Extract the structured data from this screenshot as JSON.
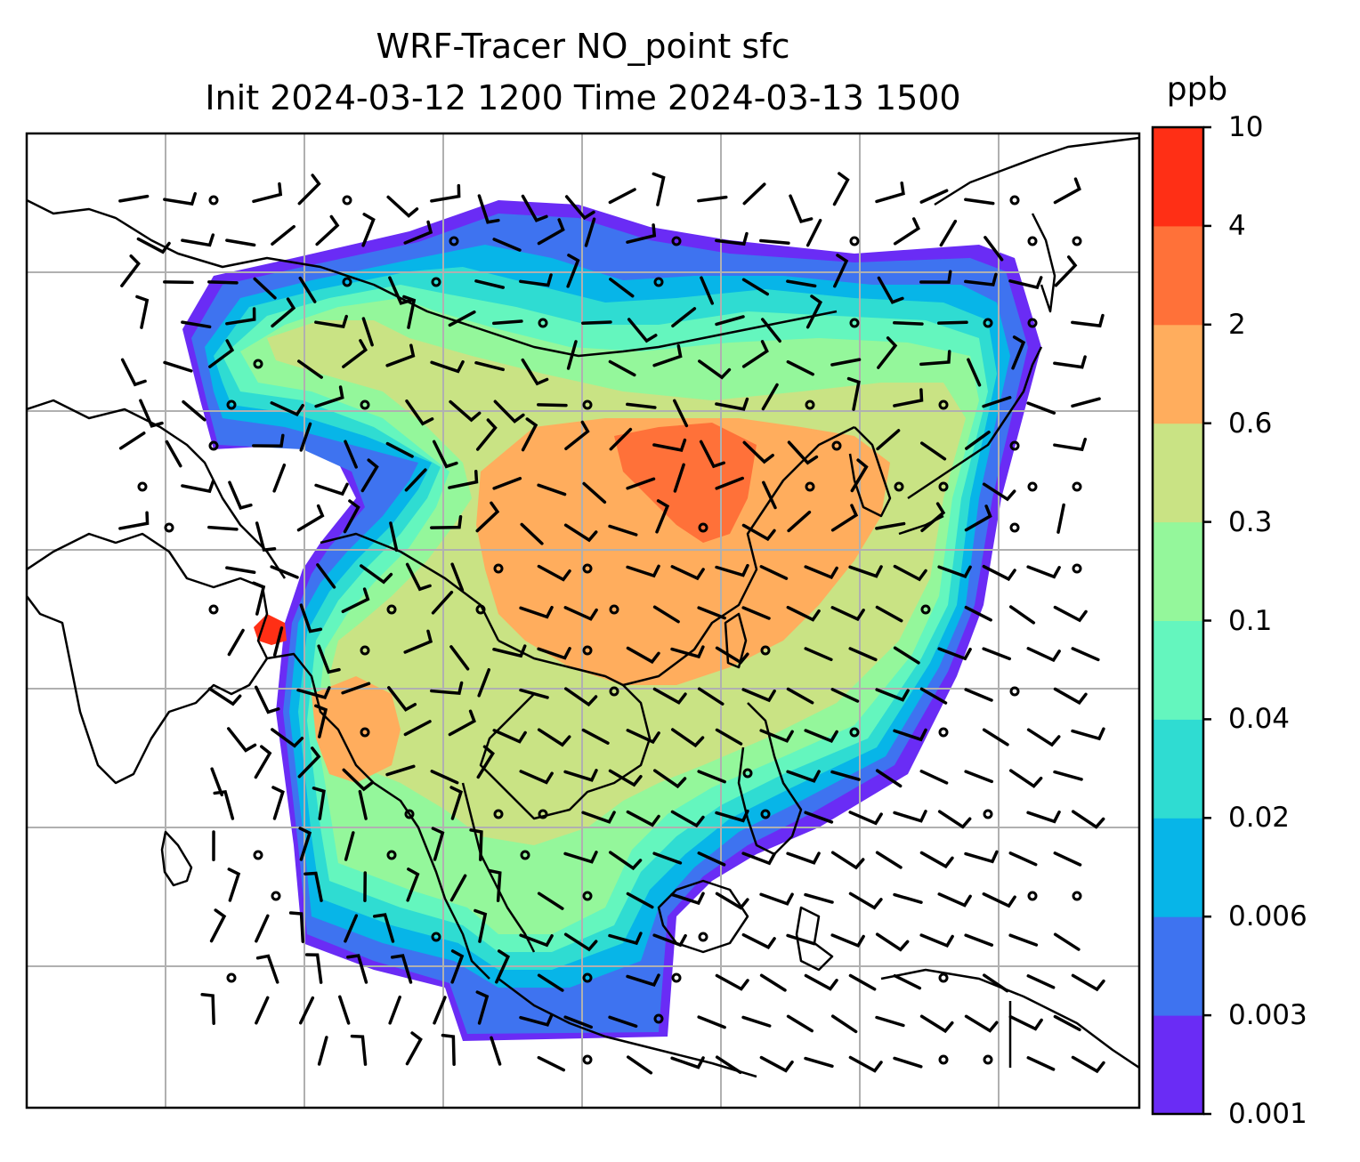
{
  "title": {
    "line1": "WRF-Tracer NO_point sfc",
    "line2": "Init 2024-03-12 1200 Time 2024-03-13 1500"
  },
  "colorbar": {
    "unit": "ppb",
    "ticks": [
      "0.001",
      "0.003",
      "0.006",
      "0.02",
      "0.04",
      "0.1",
      "0.3",
      "0.6",
      "2",
      "4",
      "10"
    ],
    "colors": [
      "#6a2cf5",
      "#3e73f0",
      "#07b5e8",
      "#2fdcd2",
      "#64f6be",
      "#94f79b",
      "#c9e384",
      "#ffad5d",
      "#ff7139",
      "#ff2f15"
    ]
  },
  "chart_data": {
    "type": "heatmap",
    "variable": "NO_point",
    "level": "sfc",
    "unit": "ppb",
    "color_levels": [
      0.001,
      0.003,
      0.006,
      0.02,
      0.04,
      0.1,
      0.3,
      0.6,
      2,
      4,
      10
    ],
    "overlays": [
      "coastlines",
      "wind-barbs",
      "gridlines"
    ],
    "grid": true
  }
}
